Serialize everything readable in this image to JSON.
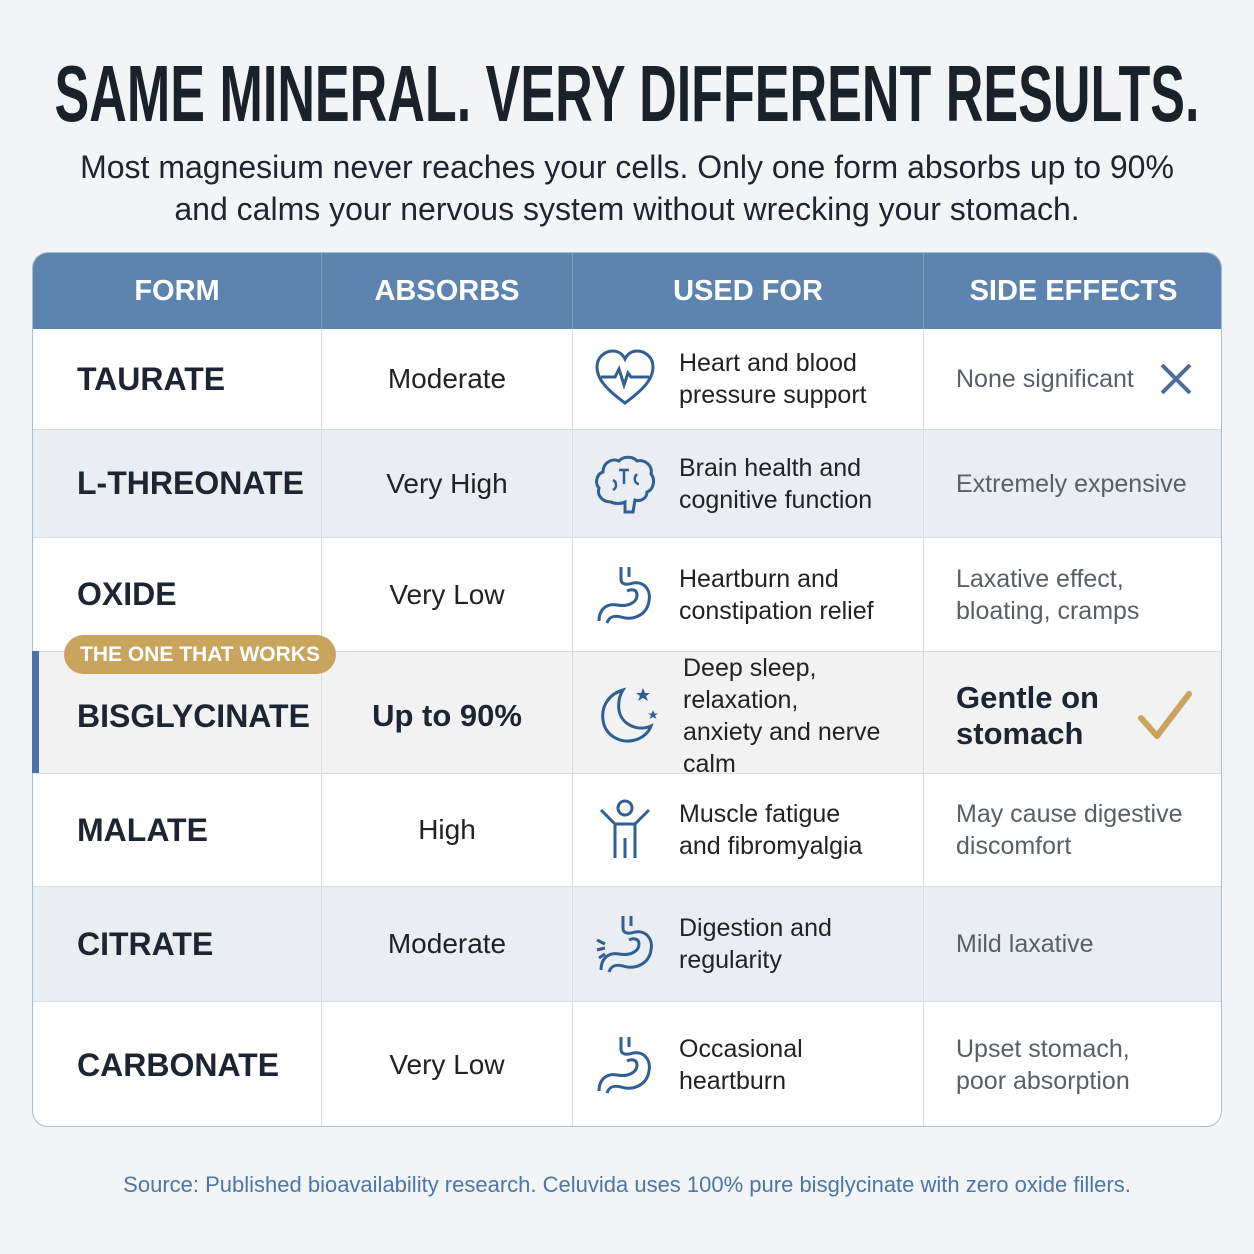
{
  "header": {
    "title": "SAME MINERAL. VERY DIFFERENT RESULTS.",
    "subtitle": [
      "Most magnesium never reaches your cells. Only one form absorbs up to 90%",
      "and calms your nervous system without wrecking your stomach."
    ]
  },
  "table": {
    "columns": [
      "FORM",
      "ABSORBS",
      "USED FOR",
      "SIDE EFFECTS"
    ],
    "badge": "THE ONE THAT WORKS",
    "rows": [
      {
        "form": "TAURATE",
        "absorbs": "Moderate",
        "used_for": [
          "Heart and blood",
          "pressure support"
        ],
        "side_effects": [
          "None significant"
        ]
      },
      {
        "form": "L-THREONATE",
        "absorbs": "Very High",
        "used_for": [
          "Brain health and",
          "cognitive function"
        ],
        "side_effects": [
          "Extremely expensive"
        ]
      },
      {
        "form": "OXIDE",
        "absorbs": "Very Low",
        "used_for": [
          "Heartburn and",
          "constipation relief"
        ],
        "side_effects": [
          "Laxative effect,",
          "bloating, cramps"
        ]
      },
      {
        "form": "BISGLYCINATE",
        "absorbs": "Up to 90%",
        "used_for": [
          "Deep sleep, relaxation,",
          "anxiety and nerve calm"
        ],
        "side_effects": [
          "Gentle on",
          "stomach"
        ]
      },
      {
        "form": "MALATE",
        "absorbs": "High",
        "used_for": [
          "Muscle fatigue",
          "and fibromyalgia"
        ],
        "side_effects": [
          "May cause digestive",
          "discomfort"
        ]
      },
      {
        "form": "CITRATE",
        "absorbs": "Moderate",
        "used_for": [
          "Digestion and",
          "regularity"
        ],
        "side_effects": [
          "Mild laxative"
        ]
      },
      {
        "form": "CARBONATE",
        "absorbs": "Very Low",
        "used_for": [
          "Occasional",
          "heartburn"
        ],
        "side_effects": [
          "Upset stomach,",
          "poor absorption"
        ]
      }
    ]
  },
  "footer": {
    "source": "Source: Published bioavailability research. Celuvida uses 100% pure bisglycinate with zero oxide fillers."
  }
}
